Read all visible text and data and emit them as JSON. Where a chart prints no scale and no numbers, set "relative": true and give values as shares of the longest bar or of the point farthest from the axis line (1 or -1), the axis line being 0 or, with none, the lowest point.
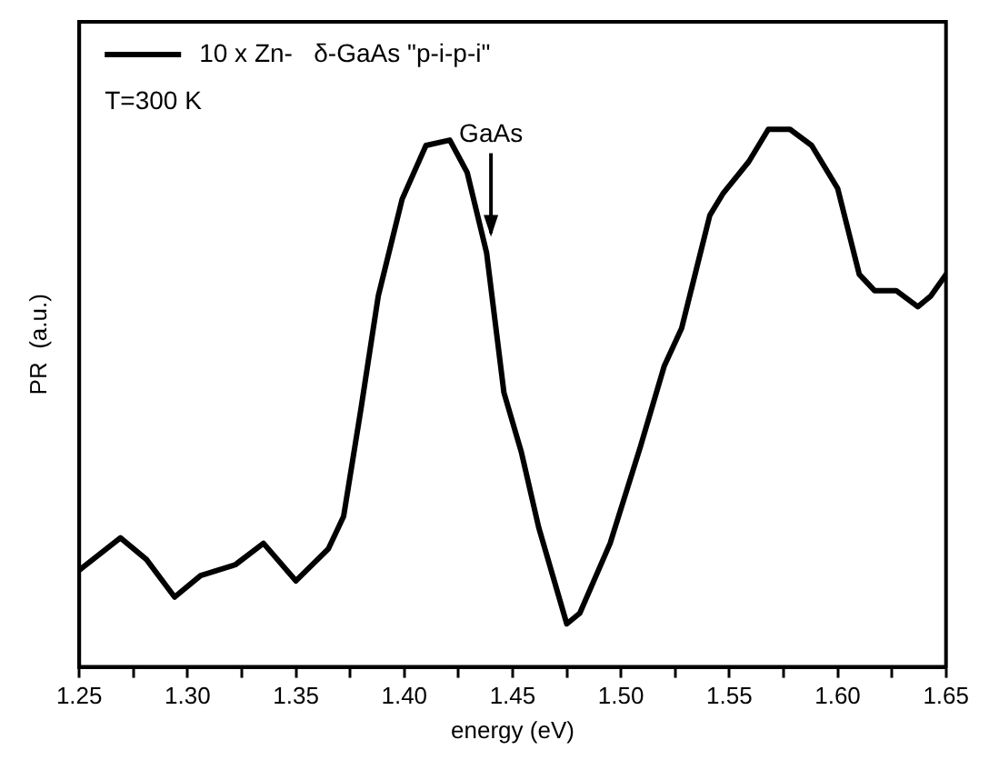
{
  "chart_data": {
    "type": "line",
    "xlabel": "energy (eV)",
    "ylabel": "PR  (a.u.)",
    "relative": true,
    "grid": false,
    "legend": "top left",
    "marker": "none",
    "line_style": "solid",
    "xlim": [
      1.25,
      1.65
    ],
    "xticks": [
      1.25,
      {
        "value": 1.275,
        "label": null
      },
      {
        "value": 1.3,
        "label": "1.30"
      },
      {
        "value": 1.325,
        "label": null
      },
      1.35,
      {
        "value": 1.375,
        "label": null
      },
      {
        "value": 1.4,
        "label": "1.40"
      },
      {
        "value": 1.425,
        "label": null
      },
      1.45,
      {
        "value": 1.475,
        "label": null
      },
      {
        "value": 1.5,
        "label": "1.50"
      },
      {
        "value": 1.525,
        "label": null
      },
      1.55,
      {
        "value": 1.575,
        "label": null
      },
      {
        "value": 1.6,
        "label": "1.60"
      },
      {
        "value": 1.625,
        "label": null
      },
      1.65
    ],
    "tick_labels": "x",
    "annotations": [
      "T=300 K",
      {
        "text": "GaAs",
        "x": 1.44,
        "y": 0.8
      }
    ],
    "series": [
      {
        "name": "10 x Zn-   δ-GaAs \"p-i-p-i\"",
        "color": "#000000",
        "x": [
          1.25,
          1.269,
          1.281,
          1.294,
          1.306,
          1.322,
          1.335,
          1.35,
          1.365,
          1.372,
          1.38,
          1.388,
          1.399,
          1.41,
          1.421,
          1.429,
          1.438,
          1.446,
          1.454,
          1.462,
          1.475,
          1.481,
          1.495,
          1.509,
          1.52,
          1.528,
          1.541,
          1.547,
          1.559,
          1.568,
          1.578,
          1.588,
          1.6,
          1.61,
          1.617,
          1.627,
          1.637,
          1.643,
          1.65
        ],
        "values": [
          0.18,
          0.24,
          0.2,
          0.13,
          0.17,
          0.19,
          0.23,
          0.16,
          0.22,
          0.28,
          0.48,
          0.69,
          0.87,
          0.97,
          0.98,
          0.92,
          0.77,
          0.51,
          0.4,
          0.26,
          0.08,
          0.1,
          0.23,
          0.41,
          0.56,
          0.63,
          0.84,
          0.88,
          0.94,
          1.0,
          1.0,
          0.97,
          0.89,
          0.73,
          0.7,
          0.7,
          0.67,
          0.69,
          0.73
        ]
      }
    ]
  }
}
